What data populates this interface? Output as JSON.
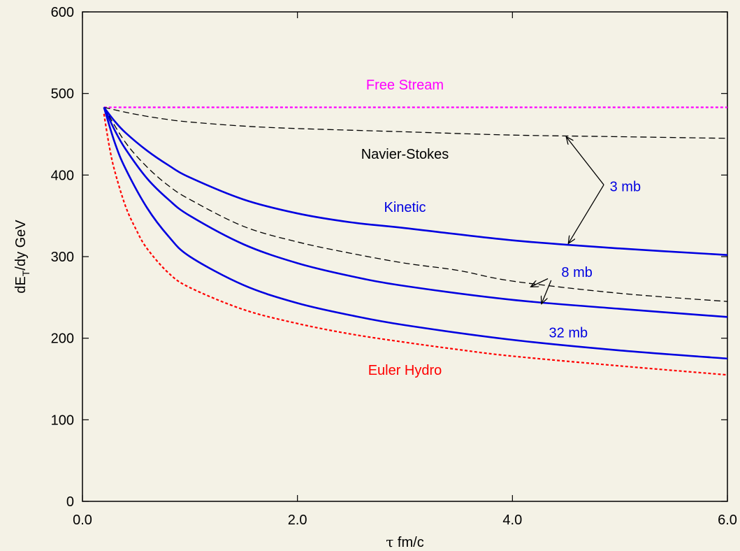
{
  "chart_data": {
    "type": "line",
    "xlabel_symbol": "τ",
    "xlabel_text": " fm/c",
    "ylabel_main": "dE",
    "ylabel_sub": "T",
    "ylabel_rest": "/dy GeV",
    "xlim": [
      0,
      6
    ],
    "ylim": [
      0,
      600
    ],
    "x_ticks": [
      0,
      2,
      4,
      6
    ],
    "x_tick_labels": [
      "0.0",
      "2.0",
      "4.0",
      "6.0"
    ],
    "y_ticks": [
      0,
      100,
      200,
      300,
      400,
      500,
      600
    ],
    "y_tick_labels": [
      "0",
      "100",
      "200",
      "300",
      "400",
      "500",
      "600"
    ],
    "grid": false,
    "series": [
      {
        "name": "Free Stream",
        "color": "#ff00ff",
        "style": "dotted",
        "points": [
          [
            0.2,
            483
          ],
          [
            1.0,
            483
          ],
          [
            2.0,
            483
          ],
          [
            3.0,
            483
          ],
          [
            4.0,
            483
          ],
          [
            5.0,
            483
          ],
          [
            6.0,
            483
          ]
        ]
      },
      {
        "name": "Navier-Stokes",
        "color": "#000000",
        "style": "dashed",
        "points": [
          [
            0.2,
            483
          ],
          [
            0.4,
            477
          ],
          [
            0.6,
            472
          ],
          [
            0.8,
            468
          ],
          [
            1.0,
            465
          ],
          [
            1.5,
            460
          ],
          [
            2.0,
            457
          ],
          [
            3.0,
            453
          ],
          [
            4.0,
            449
          ],
          [
            5.0,
            447
          ],
          [
            6.0,
            445
          ]
        ]
      },
      {
        "name": "Navier-Stokes",
        "color": "#000000",
        "style": "dashed",
        "points": [
          [
            0.2,
            483
          ],
          [
            0.4,
            440
          ],
          [
            0.6,
            410
          ],
          [
            0.8,
            387
          ],
          [
            1.0,
            370
          ],
          [
            1.5,
            337
          ],
          [
            2.0,
            318
          ],
          [
            2.5,
            304
          ],
          [
            3.0,
            292
          ],
          [
            3.5,
            283
          ],
          [
            4.0,
            270
          ],
          [
            5.0,
            255
          ],
          [
            6.0,
            245
          ]
        ]
      },
      {
        "name": "Kinetic",
        "color": "#0000e0",
        "style": "solid",
        "points": [
          [
            0.2,
            483
          ],
          [
            0.3,
            466
          ],
          [
            0.4,
            452
          ],
          [
            0.6,
            430
          ],
          [
            0.8,
            412
          ],
          [
            1.0,
            397
          ],
          [
            1.5,
            370
          ],
          [
            2.0,
            353
          ],
          [
            2.5,
            342
          ],
          [
            3.0,
            335
          ],
          [
            4.0,
            320
          ],
          [
            5.0,
            310
          ],
          [
            6.0,
            302
          ]
        ]
      },
      {
        "name": "Kinetic",
        "color": "#0000e0",
        "style": "solid",
        "points": [
          [
            0.2,
            483
          ],
          [
            0.3,
            455
          ],
          [
            0.4,
            432
          ],
          [
            0.6,
            396
          ],
          [
            0.8,
            370
          ],
          [
            1.0,
            350
          ],
          [
            1.5,
            315
          ],
          [
            2.0,
            292
          ],
          [
            2.5,
            276
          ],
          [
            3.0,
            264
          ],
          [
            4.0,
            247
          ],
          [
            5.0,
            236
          ],
          [
            6.0,
            226
          ]
        ]
      },
      {
        "name": "Kinetic",
        "color": "#0000e0",
        "style": "solid",
        "points": [
          [
            0.2,
            483
          ],
          [
            0.3,
            440
          ],
          [
            0.4,
            408
          ],
          [
            0.6,
            360
          ],
          [
            0.8,
            325
          ],
          [
            1.0,
            300
          ],
          [
            1.5,
            265
          ],
          [
            2.0,
            243
          ],
          [
            2.5,
            228
          ],
          [
            3.0,
            216
          ],
          [
            4.0,
            198
          ],
          [
            5.0,
            185
          ],
          [
            6.0,
            175
          ]
        ]
      },
      {
        "name": "Euler Hydro",
        "color": "#ff0000",
        "style": "dotted",
        "points": [
          [
            0.2,
            475
          ],
          [
            0.25,
            435
          ],
          [
            0.3,
            405
          ],
          [
            0.4,
            362
          ],
          [
            0.5,
            333
          ],
          [
            0.6,
            310
          ],
          [
            0.8,
            280
          ],
          [
            1.0,
            262
          ],
          [
            1.5,
            235
          ],
          [
            2.0,
            218
          ],
          [
            2.5,
            205
          ],
          [
            3.0,
            195
          ],
          [
            3.5,
            186
          ],
          [
            4.0,
            178
          ],
          [
            5.0,
            166
          ],
          [
            6.0,
            155
          ]
        ]
      }
    ],
    "annotations": [
      {
        "text": "Free Stream",
        "x": 3.0,
        "y": 505,
        "color": "#ff00ff"
      },
      {
        "text": "Navier-Stokes",
        "x": 3.0,
        "y": 420,
        "color": "#000000"
      },
      {
        "text": "Kinetic",
        "x": 3.0,
        "y": 355,
        "color": "#0000e0"
      },
      {
        "text": "3 mb",
        "x": 5.05,
        "y": 380,
        "color": "#0000e0"
      },
      {
        "text": "8 mb",
        "x": 4.6,
        "y": 275,
        "color": "#0000e0"
      },
      {
        "text": "32 mb",
        "x": 4.52,
        "y": 201,
        "color": "#0000e0"
      },
      {
        "text": "Euler Hydro",
        "x": 3.0,
        "y": 155,
        "color": "#ff0000"
      }
    ],
    "arrows": [
      {
        "from": [
          4.85,
          388
        ],
        "to": [
          4.5,
          447
        ]
      },
      {
        "from": [
          4.85,
          388
        ],
        "to": [
          4.52,
          316
        ]
      },
      {
        "from": [
          4.33,
          273
        ],
        "to": [
          4.17,
          263
        ]
      },
      {
        "from": [
          4.36,
          271
        ],
        "to": [
          4.27,
          242
        ]
      }
    ]
  }
}
